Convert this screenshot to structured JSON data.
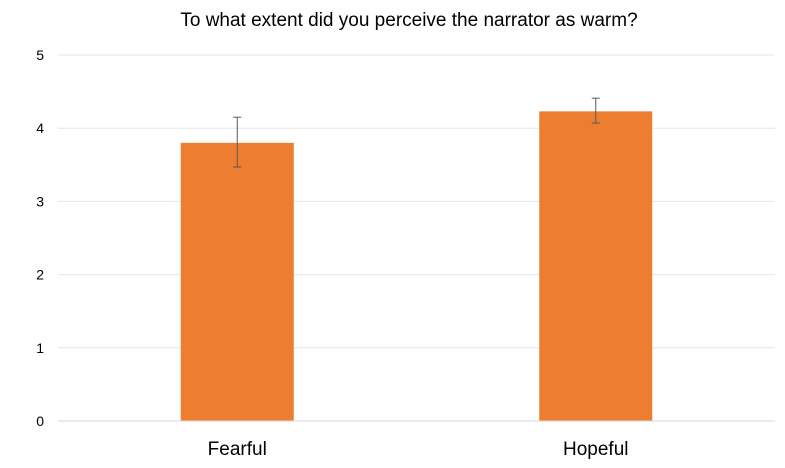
{
  "chart_data": {
    "type": "bar",
    "title": "To what extent did you perceive the narrator as warm?",
    "xlabel": "",
    "ylabel": "",
    "categories": [
      "Fearful",
      "Hopeful"
    ],
    "values": [
      3.8,
      4.23
    ],
    "error_low": [
      3.47,
      4.07
    ],
    "error_high": [
      4.15,
      4.41
    ],
    "ylim": [
      0,
      5
    ],
    "yticks": [
      "0",
      "1",
      "2",
      "3",
      "4",
      "5"
    ],
    "grid": true,
    "bar_color": "#ED7D31",
    "gridline_color": "#E6E6E6",
    "error_bar_color": "#595959"
  }
}
